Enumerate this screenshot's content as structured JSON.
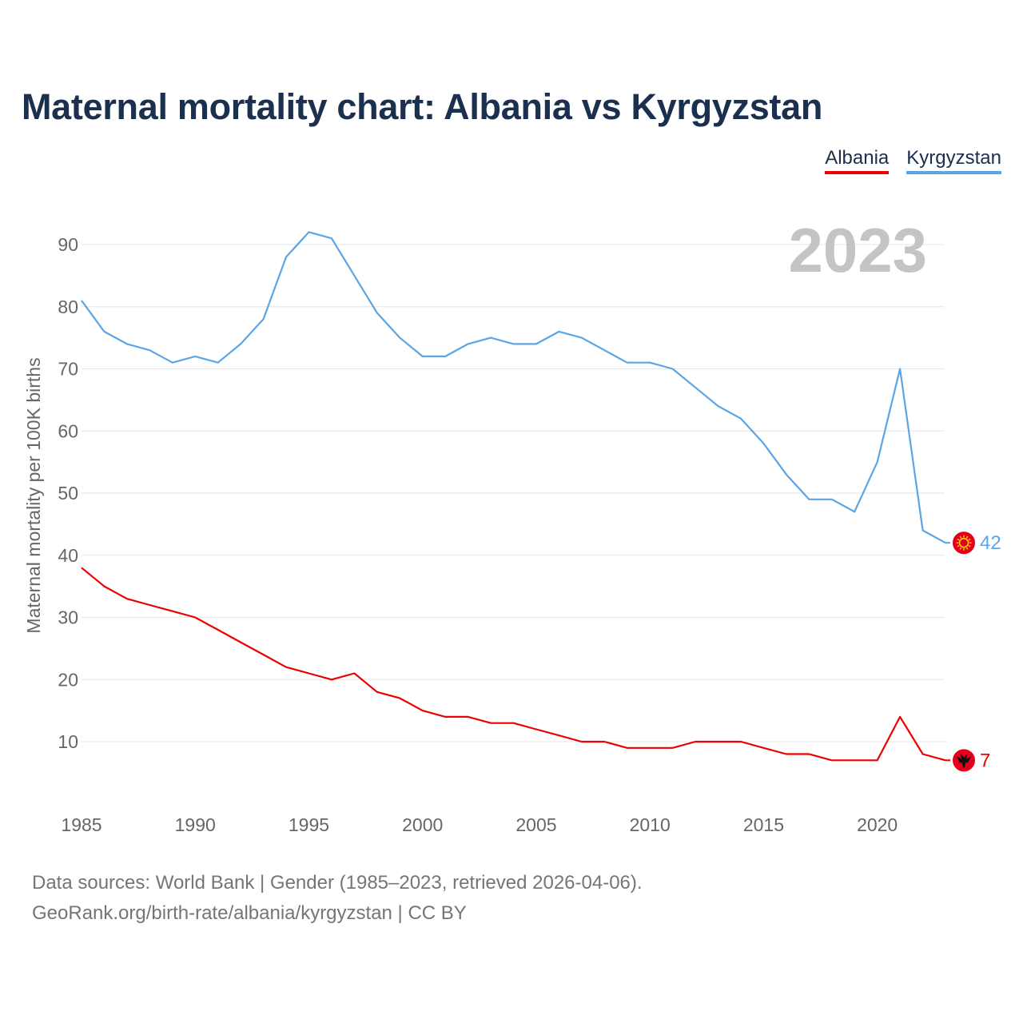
{
  "title": "Maternal mortality chart: Albania vs Kyrgyzstan",
  "legend": {
    "albania": "Albania",
    "kyrgyzstan": "Kyrgyzstan"
  },
  "colors": {
    "albania": "#ee0000",
    "kyrgyzstan": "#5ba5e6",
    "title": "#1b2f4f",
    "grid": "#e6e6e6",
    "axis_text": "#666666",
    "year_watermark": "#c4c4c4"
  },
  "footer": {
    "line1": "Data sources: World Bank | Gender (1985–2023, retrieved 2026-04-06).",
    "line2": "GeoRank.org/birth-rate/albania/kyrgyzstan | CC BY"
  },
  "chart_data": {
    "type": "line",
    "title": "Maternal mortality chart: Albania vs Kyrgyzstan",
    "xlabel": "",
    "ylabel": "Maternal mortality per 100K births",
    "year_label": "2023",
    "xlim": [
      1985,
      2023
    ],
    "ylim": [
      0,
      95
    ],
    "x_ticks": [
      1985,
      1990,
      1995,
      2000,
      2005,
      2010,
      2015,
      2020
    ],
    "y_ticks": [
      10,
      20,
      30,
      40,
      50,
      60,
      70,
      80,
      90
    ],
    "grid": true,
    "legend_position": "top-right",
    "x": [
      1985,
      1986,
      1987,
      1988,
      1989,
      1990,
      1991,
      1992,
      1993,
      1994,
      1995,
      1996,
      1997,
      1998,
      1999,
      2000,
      2001,
      2002,
      2003,
      2004,
      2005,
      2006,
      2007,
      2008,
      2009,
      2010,
      2011,
      2012,
      2013,
      2014,
      2015,
      2016,
      2017,
      2018,
      2019,
      2020,
      2021,
      2022,
      2023
    ],
    "series": [
      {
        "name": "Kyrgyzstan",
        "flag": "kyrgyzstan-flag",
        "end_label": "42",
        "values": [
          81,
          76,
          74,
          73,
          71,
          72,
          71,
          74,
          78,
          88,
          92,
          91,
          85,
          79,
          75,
          72,
          72,
          74,
          75,
          74,
          74,
          76,
          75,
          73,
          71,
          71,
          70,
          67,
          64,
          62,
          58,
          53,
          49,
          49,
          47,
          55,
          70,
          44,
          42
        ]
      },
      {
        "name": "Albania",
        "flag": "albania-flag",
        "end_label": "7",
        "values": [
          38,
          35,
          33,
          32,
          31,
          30,
          28,
          26,
          24,
          22,
          21,
          20,
          21,
          18,
          17,
          15,
          14,
          14,
          13,
          13,
          12,
          11,
          10,
          10,
          9,
          9,
          9,
          10,
          10,
          10,
          9,
          8,
          8,
          7,
          7,
          7,
          14,
          8,
          7
        ]
      }
    ]
  }
}
